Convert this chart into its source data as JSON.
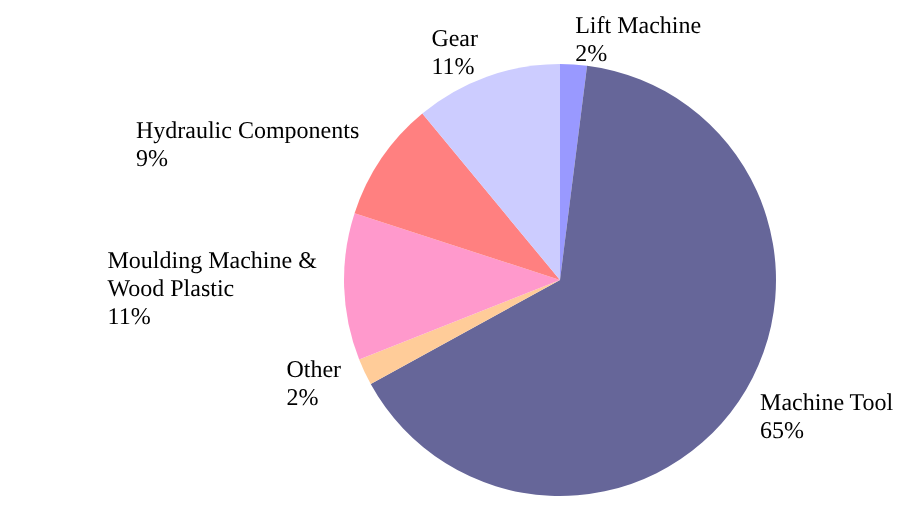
{
  "chart_data": {
    "type": "pie",
    "categories": [
      "Lift Machine",
      "Machine Tool",
      "Other",
      "Moulding Machine & Wood Plastic",
      "Hydraulic Components",
      "Gear"
    ],
    "values": [
      2,
      65,
      2,
      11,
      9,
      11
    ],
    "colors": [
      "#9999ff",
      "#666699",
      "#ffcc99",
      "#ff99cc",
      "#ff8080",
      "#ccccff"
    ],
    "value_labels": [
      "2%",
      "65%",
      "2%",
      "11%",
      "9%",
      "11%"
    ],
    "legend": false
  }
}
